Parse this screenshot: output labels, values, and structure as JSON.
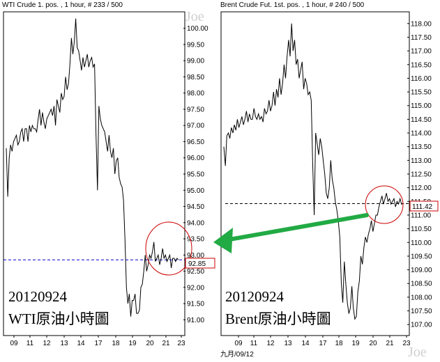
{
  "charts": [
    {
      "id": "wti",
      "title": "WTI Crude 1. pos. , 1 hour, # 233 / 500",
      "watermark": "Joe",
      "annotation_line1": "20120924",
      "annotation_line2": "WTI原油小時圖",
      "current_value_label": "92.85",
      "date_label": ""
    },
    {
      "id": "brent",
      "title": "Brent Crude Fut. 1st. pos. , 1 hour, # 240 / 500",
      "watermark": "Joe",
      "annotation_line1": "20120924",
      "annotation_line2": "Brent原油小時圖",
      "current_value_label": "111.42",
      "date_label": "九月/09/12"
    }
  ],
  "colors": {
    "price_line": "#000000",
    "reference_line": "#0000cc",
    "highlight_circle": "#cc0000",
    "value_box": "#cc0000",
    "arrow": "#22aa44",
    "watermark": "#cfcfcf"
  },
  "chart_data": [
    {
      "type": "line",
      "title": "WTI Crude 1. pos. , 1 hour, # 233 / 500",
      "x_ticks": [
        "09",
        "11",
        "12",
        "13",
        "14",
        "17",
        "18",
        "19",
        "20",
        "21",
        "23"
      ],
      "y_ticks": [
        91.0,
        91.5,
        92.0,
        92.5,
        93.0,
        93.5,
        94.0,
        94.5,
        95.0,
        95.5,
        96.0,
        96.5,
        97.0,
        97.5,
        98.0,
        98.5,
        99.0,
        99.5,
        100.0
      ],
      "ylim": [
        90.6,
        100.4
      ],
      "reference_level": 92.85,
      "grid": false,
      "axis_position": "right",
      "series": [
        {
          "x": [
            0,
            2,
            4,
            6,
            8,
            10,
            12,
            14,
            16,
            18,
            20,
            22,
            24,
            26,
            28,
            30,
            32,
            34,
            36,
            38,
            40,
            42,
            44,
            46,
            48,
            50,
            52,
            54,
            56,
            58,
            60,
            62,
            64,
            66,
            68,
            70,
            72,
            74,
            76,
            78,
            80,
            82,
            84,
            86,
            88,
            90,
            92,
            94,
            96,
            98,
            100,
            102,
            104,
            106,
            108,
            110,
            112,
            114,
            116,
            118,
            120,
            122,
            124,
            126,
            128,
            130,
            132,
            134,
            136,
            138,
            140,
            142,
            144,
            146,
            148,
            150,
            152,
            154,
            156,
            158,
            160,
            162,
            164,
            166,
            168,
            170,
            172,
            174,
            176,
            178,
            180,
            182,
            184,
            186,
            188,
            190,
            192,
            194,
            196,
            198,
            200,
            202,
            204,
            206,
            208,
            210,
            212,
            214,
            216,
            218,
            220,
            222,
            224,
            226,
            228,
            230,
            232,
            234,
            236,
            238
          ],
          "values": [
            96.3,
            94.8,
            96.0,
            96.4,
            96.2,
            96.5,
            96.6,
            96.7,
            96.4,
            96.5,
            96.8,
            96.9,
            96.5,
            96.9,
            96.9,
            96.5,
            97.0,
            96.8,
            97.0,
            96.9,
            96.9,
            96.8,
            97.2,
            97.5,
            97.0,
            97.4,
            97.1,
            96.9,
            97.2,
            97.3,
            97.4,
            97.5,
            97.3,
            97.6,
            97.0,
            97.8,
            97.6,
            97.4,
            98.0,
            97.8,
            97.9,
            98.5,
            98.1,
            98.3,
            98.9,
            99.7,
            99.2,
            99.6,
            100.3,
            99.4,
            99.3,
            99.0,
            98.7,
            99.1,
            98.8,
            99.0,
            99.2,
            98.8,
            99.0,
            99.1,
            98.8,
            98.9,
            96.7,
            95.0,
            97.6,
            97.2,
            97.0,
            96.9,
            96.8,
            96.5,
            96.2,
            96.7,
            96.2,
            96.0,
            96.3,
            95.5,
            95.9,
            96.0,
            95.4,
            95.2,
            95.1,
            94.7,
            93.5,
            92.0,
            91.5,
            91.8,
            91.1,
            91.6,
            91.6,
            91.8,
            91.2,
            91.2,
            91.3,
            92.0,
            92.1,
            92.5,
            93.0,
            92.5,
            92.7,
            93.0,
            92.9,
            93.1,
            93.4,
            92.8,
            92.9,
            93.0,
            92.7,
            92.9,
            93.2,
            92.9,
            93.0,
            92.8,
            92.9,
            93.0,
            92.6,
            92.9,
            92.9,
            92.8,
            92.9,
            92.85
          ]
        }
      ]
    },
    {
      "type": "line",
      "title": "Brent Crude Fut. 1st. pos. , 1 hour, # 240 / 500",
      "x_ticks": [
        "09",
        "11",
        "12",
        "13",
        "14",
        "17",
        "18",
        "19",
        "20",
        "21",
        "23"
      ],
      "y_ticks": [
        107.0,
        107.5,
        108.0,
        108.5,
        109.0,
        109.5,
        110.0,
        110.5,
        111.0,
        111.5,
        112.0,
        112.5,
        113.0,
        113.5,
        114.0,
        114.5,
        115.0,
        115.5,
        116.0,
        116.5,
        117.0,
        117.5,
        118.0
      ],
      "ylim": [
        106.7,
        118.3
      ],
      "reference_level": 111.42,
      "grid": false,
      "axis_position": "right",
      "x_axis_label": "九月/09/12",
      "series": [
        {
          "x": [
            0,
            2,
            4,
            6,
            8,
            10,
            12,
            14,
            16,
            18,
            20,
            22,
            24,
            26,
            28,
            30,
            32,
            34,
            36,
            38,
            40,
            42,
            44,
            46,
            48,
            50,
            52,
            54,
            56,
            58,
            60,
            62,
            64,
            66,
            68,
            70,
            72,
            74,
            76,
            78,
            80,
            82,
            84,
            86,
            88,
            90,
            92,
            94,
            96,
            98,
            100,
            102,
            104,
            106,
            108,
            110,
            112,
            114,
            116,
            118,
            120,
            122,
            124,
            126,
            128,
            130,
            132,
            134,
            136,
            138,
            140,
            142,
            144,
            146,
            148,
            150,
            152,
            154,
            156,
            158,
            160,
            162,
            164,
            166,
            168,
            170,
            172,
            174,
            176,
            178,
            180,
            182,
            184,
            186,
            188,
            190,
            192,
            194,
            196,
            198,
            200,
            202,
            204,
            206,
            208,
            210,
            212,
            214,
            216,
            218,
            220,
            222,
            224,
            226,
            228,
            230,
            232,
            234,
            236,
            238
          ],
          "values": [
            113.5,
            112.8,
            113.9,
            114.0,
            113.8,
            114.2,
            114.0,
            114.3,
            114.1,
            114.5,
            114.2,
            114.4,
            114.6,
            114.3,
            114.5,
            114.8,
            114.4,
            114.7,
            114.5,
            114.5,
            114.9,
            114.6,
            114.5,
            114.7,
            114.5,
            114.6,
            114.4,
            114.9,
            114.7,
            114.8,
            115.2,
            114.8,
            115.0,
            115.5,
            115.0,
            115.6,
            115.3,
            116.0,
            115.4,
            115.8,
            116.5,
            116.0,
            116.8,
            117.4,
            116.8,
            118.0,
            117.0,
            117.4,
            116.5,
            116.7,
            116.0,
            116.3,
            116.6,
            115.6,
            116.0,
            115.8,
            115.4,
            115.5,
            115.2,
            112.9,
            111.0,
            114.0,
            113.6,
            113.2,
            113.8,
            113.5,
            113.0,
            112.5,
            111.8,
            111.6,
            112.0,
            113.0,
            112.3,
            112.0,
            111.5,
            111.2,
            110.8,
            110.2,
            108.5,
            107.8,
            109.3,
            108.5,
            107.8,
            107.4,
            107.6,
            108.4,
            107.6,
            107.2,
            107.3,
            108.2,
            108.6,
            109.5,
            109.2,
            109.8,
            110.2,
            110.0,
            110.3,
            110.5,
            110.8,
            110.4,
            110.7,
            111.0,
            111.0,
            111.3,
            111.5,
            111.7,
            111.4,
            111.6,
            111.8,
            111.5,
            111.6,
            111.4,
            111.5,
            111.6,
            111.3,
            111.5,
            111.4,
            111.6,
            111.4,
            111.42
          ]
        }
      ]
    }
  ]
}
